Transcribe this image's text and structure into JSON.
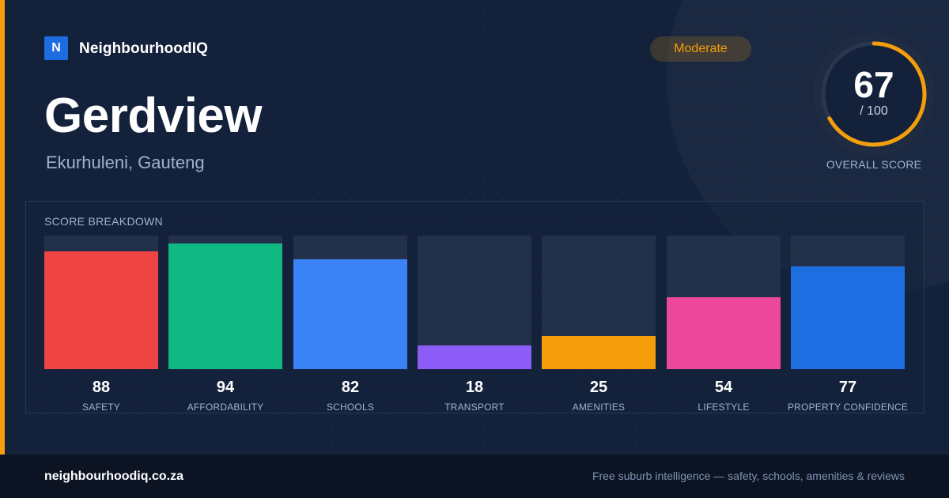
{
  "brand": {
    "logo_letter": "N",
    "name": "NeighbourhoodIQ"
  },
  "suburb": {
    "name": "Gerdview",
    "location": "Ekurhuleni, Gauteng"
  },
  "rating_badge": {
    "label": "Moderate",
    "color": "#f59e0b"
  },
  "overall": {
    "score": "67",
    "max_text": "/ 100",
    "max": 100,
    "label": "OVERALL SCORE",
    "ring_color": "#f59e0b"
  },
  "breakdown": {
    "title": "SCORE BREAKDOWN",
    "items": [
      {
        "label": "SAFETY",
        "value": 88,
        "color": "#ef4444"
      },
      {
        "label": "AFFORDABILITY",
        "value": 94,
        "color": "#10b981"
      },
      {
        "label": "SCHOOLS",
        "value": 82,
        "color": "#3b82f6"
      },
      {
        "label": "TRANSPORT",
        "value": 18,
        "color": "#8b5cf6"
      },
      {
        "label": "AMENITIES",
        "value": 25,
        "color": "#f59e0b"
      },
      {
        "label": "LIFESTYLE",
        "value": 54,
        "color": "#ec4899"
      },
      {
        "label": "PROPERTY CONFIDENCE",
        "value": 77,
        "color": "#1d6ee0"
      }
    ]
  },
  "footer": {
    "url": "neighbourhoodiq.co.za",
    "tagline": "Free suburb intelligence — safety, schools, amenities & reviews"
  },
  "colors": {
    "accent": "#f59e0b",
    "background": "#13213b",
    "footer": "#0c1424"
  }
}
